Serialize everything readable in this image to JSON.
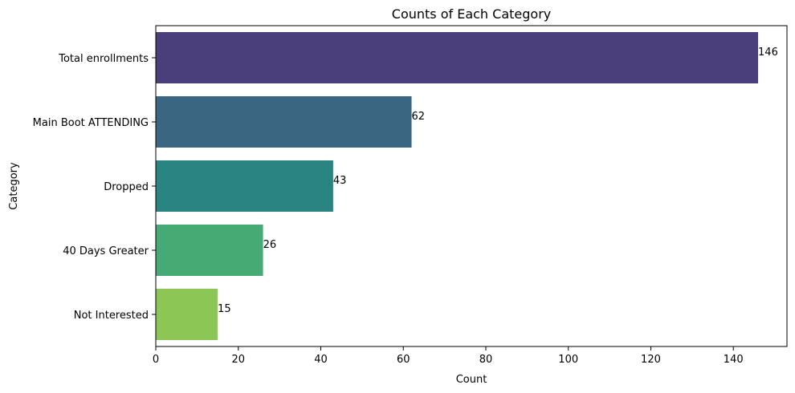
{
  "chart_data": {
    "type": "bar",
    "orientation": "horizontal",
    "title": "Counts of Each Category",
    "xlabel": "Count",
    "ylabel": "Category",
    "categories": [
      "Total enrollments",
      "Main Boot ATTENDING",
      "Dropped",
      "40 Days Greater",
      "Not Interested"
    ],
    "values": [
      146,
      62,
      43,
      26,
      15
    ],
    "data_labels": [
      "146",
      "62",
      "43",
      "26",
      "15"
    ],
    "colors": [
      "#4a3f7b",
      "#3b6682",
      "#2a8582",
      "#45aa74",
      "#8cc655"
    ],
    "xlim": [
      0,
      153
    ],
    "xticks": [
      0,
      20,
      40,
      60,
      80,
      100,
      120,
      140
    ],
    "grid": false,
    "legend": "none"
  }
}
